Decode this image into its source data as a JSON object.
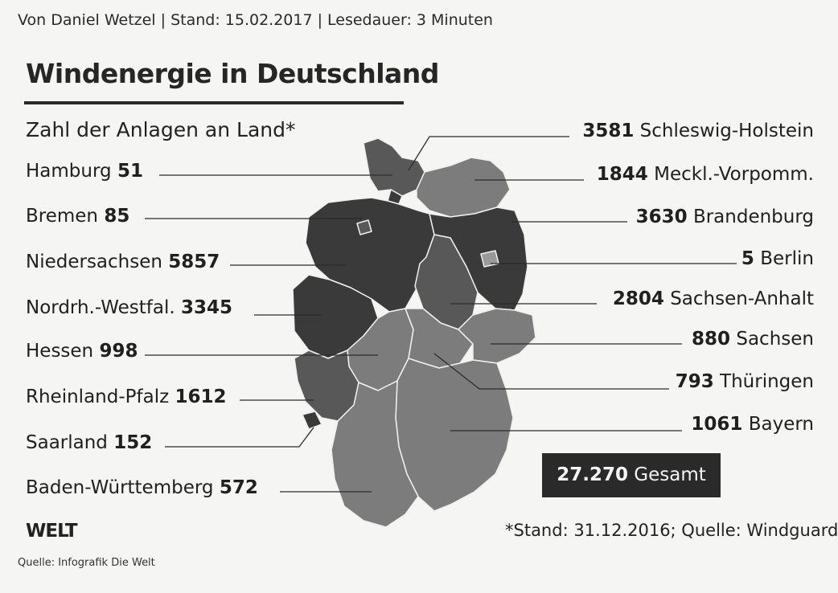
{
  "byline": "Von Daniel Wetzel | Stand: 15.02.2017 | Lesedauer: 3 Minuten",
  "title": "Windenergie in Deutschland",
  "subtitle": "Zahl der Anlagen an Land*",
  "states_left": [
    {
      "name": "Hamburg",
      "value": "51"
    },
    {
      "name": "Bremen",
      "value": "85"
    },
    {
      "name": "Niedersachsen",
      "value": "5857"
    },
    {
      "name": "Nordrh.-Westfal.",
      "value": "3345"
    },
    {
      "name": "Hessen",
      "value": "998"
    },
    {
      "name": "Rheinland-Pfalz",
      "value": "1612"
    },
    {
      "name": "Saarland",
      "value": "152"
    },
    {
      "name": "Baden-Württemberg",
      "value": "572"
    }
  ],
  "states_right": [
    {
      "name": "Schleswig-Holstein",
      "value": "3581"
    },
    {
      "name": "Meckl.-Vorpomm.",
      "value": "1844"
    },
    {
      "name": "Brandenburg",
      "value": "3630"
    },
    {
      "name": "Berlin",
      "value": "5"
    },
    {
      "name": "Sachsen-Anhalt",
      "value": "2804"
    },
    {
      "name": "Sachsen",
      "value": "880"
    },
    {
      "name": "Thüringen",
      "value": "793"
    },
    {
      "name": "Bayern",
      "value": "1061"
    }
  ],
  "total": {
    "value": "27.270",
    "label": "Gesamt"
  },
  "footnote": "*Stand: 31.12.2016; Quelle: Windguard",
  "logo": "WELT",
  "credit": "Quelle: Infografik Die Welt",
  "colors": {
    "darkest": "#3a3a3a",
    "dark": "#585858",
    "medium": "#7c7c7c",
    "light": "#9a9a9a",
    "total_box": "#2a2a2a"
  }
}
